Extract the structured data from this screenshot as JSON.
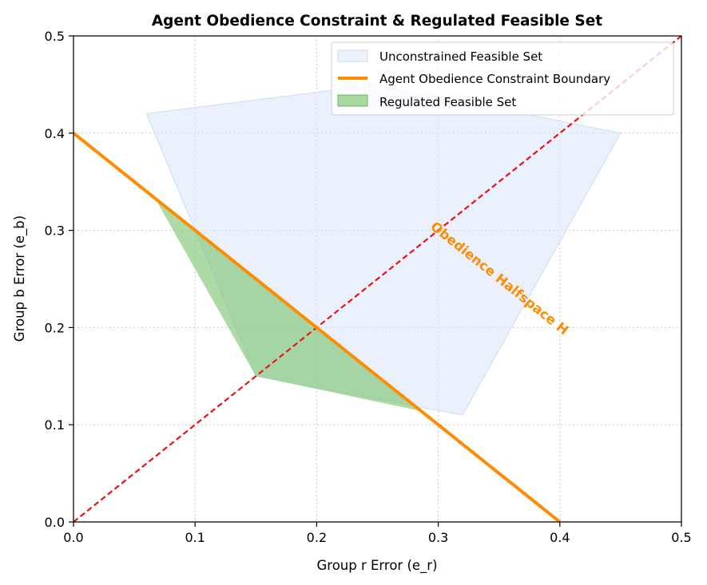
{
  "chart_data": {
    "type": "area",
    "title": "Agent Obedience Constraint & Regulated Feasible Set",
    "xlabel": "Group r Error (e_r)",
    "ylabel": "Group b Error (e_b)",
    "xlim": [
      0.0,
      0.5
    ],
    "ylim": [
      0.0,
      0.5
    ],
    "xticks": [
      0.0,
      0.1,
      0.2,
      0.3,
      0.4,
      0.5
    ],
    "yticks": [
      0.0,
      0.1,
      0.2,
      0.3,
      0.4,
      0.5
    ],
    "xtick_labels": [
      "0.0",
      "0.1",
      "0.2",
      "0.3",
      "0.4",
      "0.5"
    ],
    "ytick_labels": [
      "0.0",
      "0.1",
      "0.2",
      "0.3",
      "0.4",
      "0.5"
    ],
    "grid": true,
    "legend_position": "top-right",
    "series": [
      {
        "name": "Unconstrained Feasible Set",
        "kind": "polygon",
        "color": "#dce8fb",
        "points": [
          [
            0.06,
            0.42
          ],
          [
            0.25,
            0.45
          ],
          [
            0.45,
            0.4
          ],
          [
            0.32,
            0.11
          ],
          [
            0.15,
            0.15
          ]
        ]
      },
      {
        "name": "Agent Obedience Constraint Boundary",
        "kind": "line",
        "color": "#ff8c00",
        "points": [
          [
            0.0,
            0.4
          ],
          [
            0.4,
            0.0
          ]
        ]
      },
      {
        "name": "Regulated Feasible Set",
        "kind": "polygon",
        "color": "#7dc36f",
        "points": [
          [
            0.067,
            0.333
          ],
          [
            0.15,
            0.15
          ],
          [
            0.286,
            0.114
          ]
        ]
      }
    ],
    "diagonal": {
      "points": [
        [
          0.0,
          0.0
        ],
        [
          0.5,
          0.5
        ]
      ],
      "color": "#ee1111",
      "style": "dashed"
    },
    "annotation": {
      "text": "Obedience Halfspace H",
      "x": 0.35,
      "y": 0.25,
      "color": "#ff8c00"
    }
  }
}
